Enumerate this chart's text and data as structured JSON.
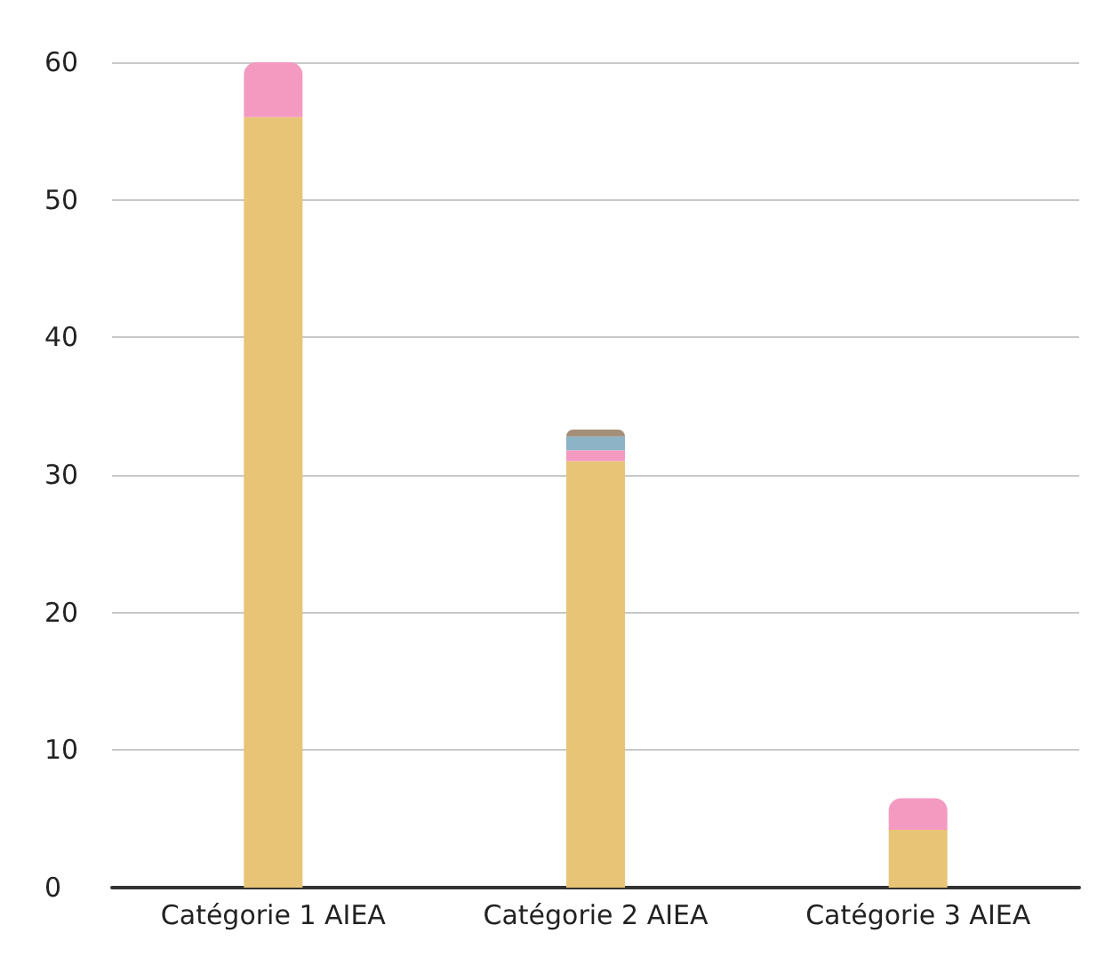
{
  "chart_data": {
    "type": "bar",
    "stacked": true,
    "categories": [
      "Catégorie 1 AIEA",
      "Catégorie 2 AIEA",
      "Catégorie 3 AIEA"
    ],
    "series": [
      {
        "color": "#e8c477",
        "values": [
          56,
          31,
          4.2
        ]
      },
      {
        "color": "#f49ac1",
        "values": [
          4,
          0.8,
          2.3
        ]
      },
      {
        "color": "#8db3c7",
        "values": [
          null,
          1,
          null
        ]
      },
      {
        "color": "#a58e78",
        "values": [
          null,
          0.5,
          null
        ]
      }
    ],
    "ylim": [
      0,
      60
    ],
    "yticks": [
      0,
      10,
      20,
      30,
      40,
      50,
      60
    ],
    "grid": "y"
  }
}
